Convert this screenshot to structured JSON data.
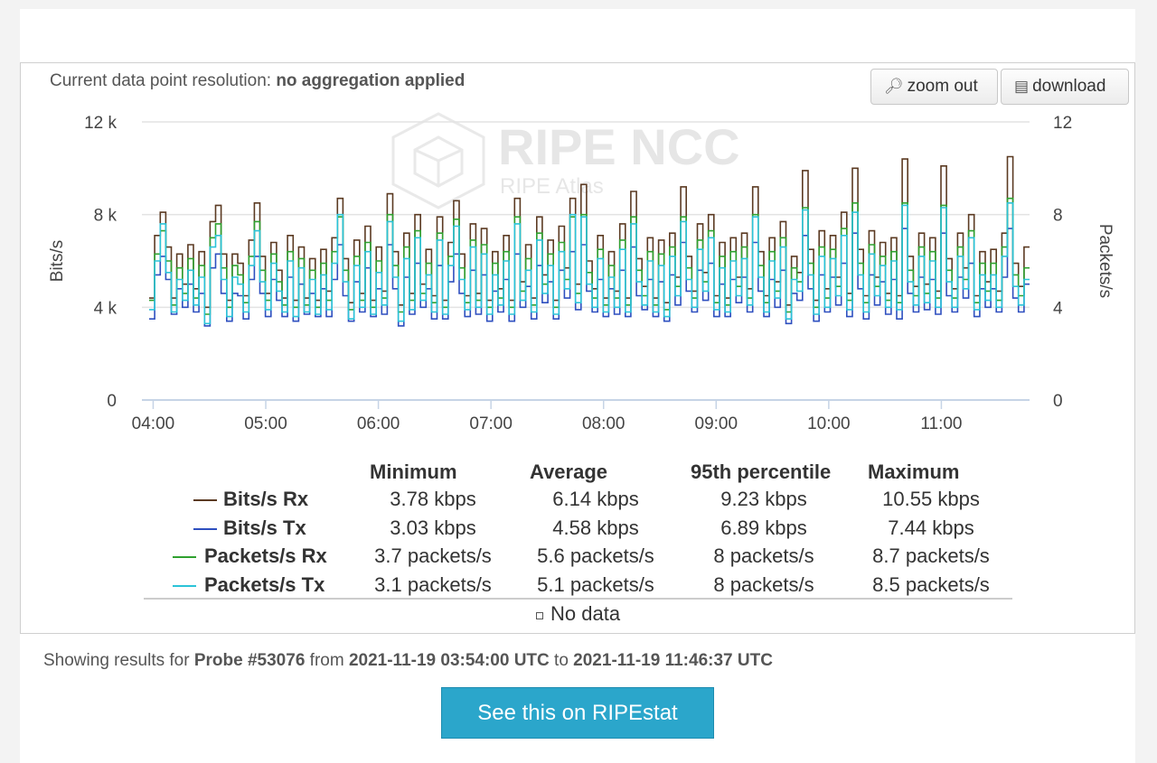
{
  "resolution": {
    "label": "Current data point resolution: ",
    "value": "no aggregation applied"
  },
  "toolbar": {
    "zoom_out_label": "zoom out",
    "download_label": "download"
  },
  "watermark": {
    "brand": "RIPE NCC",
    "product": "RIPE Atlas"
  },
  "chart_data": {
    "type": "line",
    "step": true,
    "x_ticks": [
      "04:00",
      "05:00",
      "06:00",
      "07:00",
      "08:00",
      "09:00",
      "10:00",
      "11:00"
    ],
    "x_range": [
      "03:54",
      "11:47"
    ],
    "ylabel_left": "Bits/s",
    "ylabel_right": "Packets/s",
    "y_left_ticks": [
      "0",
      "4 k",
      "8 k",
      "12 k"
    ],
    "y_right_ticks": [
      "0",
      "4",
      "8",
      "12"
    ],
    "ylim_left": [
      0,
      12000
    ],
    "ylim_right": [
      0,
      12
    ],
    "grid": true,
    "series": [
      {
        "name": "Bits/s Rx",
        "color": "#5b3a22",
        "axis": "left",
        "min": "3.78 kbps",
        "avg": "6.14 kbps",
        "p95": "9.23 kbps",
        "max": "10.55 kbps",
        "values": [
          4.4,
          7.1,
          8.1,
          6.6,
          4.4,
          6.3,
          5.0,
          6.7,
          4.8,
          6.4,
          4.0,
          7.7,
          8.4,
          6.3,
          4.3,
          6.3,
          5.9,
          4.5,
          6.9,
          8.5,
          6.2,
          4.6,
          6.8,
          5.6,
          4.4,
          7.1,
          4.3,
          6.6,
          4.4,
          6.1,
          4.3,
          6.5,
          4.7,
          7.0,
          8.7,
          6.1,
          4.2,
          6.9,
          4.6,
          7.5,
          4.3,
          6.6,
          4.7,
          8.9,
          6.4,
          4.1,
          7.2,
          4.6,
          8.0,
          5.0,
          6.5,
          4.5,
          7.9,
          4.3,
          6.8,
          8.6,
          6.3,
          4.5,
          7.6,
          4.6,
          7.4,
          4.3,
          6.4,
          4.8,
          7.1,
          4.3,
          8.7,
          5.1,
          6.7,
          4.4,
          7.9,
          5.4,
          6.9,
          4.3,
          7.5,
          5.7,
          8.7,
          5.0,
          9.3,
          6.0,
          4.8,
          7.1,
          4.4,
          6.4,
          4.7,
          7.6,
          4.4,
          9.0,
          6.1,
          4.9,
          7.0,
          4.4,
          6.9,
          4.2,
          7.2,
          5.3,
          9.2,
          6.2,
          4.7,
          7.6,
          5.5,
          8.0,
          4.5,
          6.8,
          4.4,
          7.0,
          5.3,
          7.2,
          4.8,
          9.2,
          6.4,
          4.5,
          7.0,
          5.1,
          7.7,
          4.1,
          6.2,
          5.5,
          9.9,
          6.5,
          4.3,
          7.3,
          4.8,
          7.1,
          5.3,
          8.1,
          4.6,
          10.0,
          6.5,
          4.5,
          7.3,
          5.3,
          6.8,
          4.6,
          7.0,
          4.5,
          10.4,
          6.2,
          4.9,
          7.2,
          5.0,
          7.0,
          4.7,
          10.1,
          6.1,
          4.8,
          7.2,
          5.7,
          8.0,
          4.5,
          6.4,
          5.1,
          6.5,
          4.7,
          7.2,
          10.5,
          5.9,
          4.9,
          6.6
        ]
      },
      {
        "name": "Bits/s Tx",
        "color": "#2e4fbf",
        "axis": "left",
        "min": "3.03 kbps",
        "avg": "4.58 kbps",
        "p95": "6.89 kbps",
        "max": "7.44 kbps",
        "values": [
          3.5,
          5.4,
          6.2,
          5.2,
          3.7,
          4.8,
          4.0,
          5.0,
          3.8,
          4.6,
          3.2,
          5.7,
          6.3,
          4.6,
          3.4,
          4.6,
          4.5,
          3.5,
          5.2,
          6.2,
          4.6,
          3.6,
          5.2,
          4.3,
          3.6,
          5.3,
          3.4,
          5.0,
          3.7,
          4.6,
          3.6,
          4.8,
          3.6,
          5.2,
          6.7,
          4.5,
          3.4,
          5.1,
          3.8,
          5.7,
          3.6,
          4.8,
          3.7,
          6.7,
          4.8,
          3.2,
          5.3,
          3.7,
          5.9,
          4.0,
          4.8,
          3.5,
          5.8,
          3.5,
          5.1,
          6.3,
          4.6,
          3.6,
          5.6,
          3.7,
          5.4,
          3.4,
          4.7,
          3.8,
          5.2,
          3.4,
          6.3,
          4.0,
          4.9,
          3.5,
          5.8,
          4.2,
          5.1,
          3.5,
          5.6,
          4.4,
          6.4,
          3.9,
          6.7,
          4.7,
          3.8,
          5.2,
          3.6,
          4.8,
          3.7,
          5.6,
          3.6,
          6.6,
          4.5,
          3.9,
          5.2,
          3.6,
          5.1,
          3.4,
          5.4,
          4.1,
          6.8,
          4.7,
          3.8,
          5.6,
          4.3,
          5.9,
          3.6,
          5.0,
          3.6,
          5.2,
          4.2,
          5.3,
          3.8,
          6.8,
          4.7,
          3.6,
          5.2,
          4.0,
          5.6,
          3.3,
          4.6,
          4.3,
          7.1,
          4.8,
          3.4,
          5.4,
          3.8,
          5.3,
          4.1,
          5.9,
          3.6,
          7.2,
          4.8,
          3.5,
          5.4,
          4.1,
          5.1,
          3.7,
          5.2,
          3.5,
          7.4,
          4.6,
          3.8,
          5.3,
          3.9,
          5.2,
          3.7,
          7.2,
          4.5,
          3.8,
          5.3,
          4.4,
          5.9,
          3.6,
          4.8,
          4.0,
          4.8,
          3.8,
          5.3,
          7.4,
          4.4,
          3.8,
          5.0
        ]
      },
      {
        "name": "Packets/s Rx",
        "color": "#2fa12f",
        "axis": "right",
        "min": "3.7 packets/s",
        "avg": "5.6 packets/s",
        "p95": "8 packets/s",
        "max": "8.7 packets/s",
        "values": [
          4.3,
          6.3,
          7.3,
          6.0,
          4.1,
          5.7,
          4.6,
          6.1,
          4.4,
          5.8,
          3.7,
          7.0,
          7.6,
          5.7,
          4.0,
          5.8,
          5.4,
          4.2,
          6.2,
          7.7,
          5.6,
          4.3,
          6.3,
          5.1,
          4.1,
          6.4,
          4.0,
          6.1,
          4.1,
          5.6,
          4.0,
          5.9,
          4.3,
          6.4,
          7.9,
          5.6,
          3.9,
          6.2,
          4.3,
          6.8,
          4.0,
          6.0,
          4.4,
          8.0,
          5.8,
          3.8,
          6.6,
          4.3,
          7.3,
          4.6,
          5.9,
          4.2,
          7.2,
          4.0,
          6.2,
          7.8,
          5.7,
          4.2,
          6.9,
          4.3,
          6.7,
          4.0,
          5.9,
          4.4,
          6.4,
          4.0,
          7.9,
          4.7,
          6.1,
          4.1,
          7.2,
          5.0,
          6.3,
          4.0,
          6.8,
          5.2,
          7.9,
          4.6,
          8.0,
          5.5,
          4.4,
          6.5,
          4.1,
          5.8,
          4.4,
          6.9,
          4.1,
          7.9,
          5.6,
          4.5,
          6.4,
          4.1,
          6.3,
          3.9,
          6.6,
          4.9,
          7.9,
          5.7,
          4.4,
          6.9,
          5.1,
          7.3,
          4.2,
          6.2,
          4.1,
          6.4,
          4.9,
          6.6,
          4.4,
          8.0,
          5.8,
          4.2,
          6.4,
          4.7,
          7.0,
          3.8,
          5.7,
          5.1,
          8.3,
          5.9,
          4.0,
          6.6,
          4.4,
          6.5,
          4.9,
          7.4,
          4.3,
          8.5,
          5.9,
          4.2,
          6.7,
          4.9,
          6.2,
          4.3,
          6.4,
          4.2,
          8.5,
          5.6,
          4.5,
          6.6,
          4.6,
          6.4,
          4.4,
          8.4,
          5.6,
          4.4,
          6.6,
          5.2,
          7.3,
          4.2,
          5.9,
          4.7,
          5.9,
          4.3,
          6.6,
          8.7,
          5.4,
          4.5,
          5.7
        ]
      },
      {
        "name": "Packets/s Tx",
        "color": "#2bc3d8",
        "axis": "right",
        "min": "3.1 packets/s",
        "avg": "5.1 packets/s",
        "p95": "8 packets/s",
        "max": "8.5 packets/s",
        "values": [
          3.9,
          6.0,
          7.6,
          5.5,
          3.8,
          5.2,
          4.3,
          5.6,
          4.1,
          5.3,
          3.3,
          6.6,
          7.1,
          5.2,
          3.6,
          5.3,
          5.0,
          3.8,
          5.8,
          7.3,
          5.1,
          3.9,
          5.9,
          4.7,
          3.8,
          6.0,
          3.6,
          5.7,
          3.8,
          5.2,
          3.7,
          5.4,
          3.9,
          5.9,
          8.0,
          5.1,
          3.5,
          5.8,
          4.0,
          6.4,
          3.7,
          5.5,
          4.1,
          7.7,
          5.3,
          3.4,
          6.1,
          3.9,
          7.0,
          4.3,
          5.4,
          3.8,
          6.9,
          3.7,
          5.8,
          7.5,
          5.2,
          3.9,
          6.6,
          4.0,
          6.3,
          3.7,
          5.4,
          4.1,
          6.0,
          3.7,
          7.6,
          4.3,
          5.6,
          3.8,
          6.9,
          4.6,
          5.8,
          3.7,
          6.4,
          4.8,
          8.0,
          4.2,
          7.9,
          5.0,
          4.0,
          6.1,
          3.8,
          5.3,
          4.0,
          6.5,
          3.8,
          7.6,
          5.1,
          4.1,
          6.0,
          3.8,
          5.8,
          3.6,
          6.2,
          4.5,
          7.7,
          5.2,
          4.0,
          6.5,
          4.7,
          7.0,
          3.9,
          5.7,
          3.8,
          6.0,
          4.5,
          6.1,
          4.1,
          7.9,
          5.3,
          3.8,
          6.0,
          4.4,
          6.6,
          3.5,
          5.2,
          4.7,
          8.2,
          5.4,
          3.7,
          6.2,
          4.0,
          6.1,
          4.5,
          7.1,
          3.9,
          8.1,
          5.4,
          3.8,
          6.3,
          4.5,
          5.8,
          4.0,
          6.0,
          3.9,
          8.4,
          5.1,
          4.1,
          6.2,
          4.2,
          6.0,
          4.0,
          8.3,
          5.1,
          4.0,
          6.2,
          4.8,
          7.0,
          3.9,
          5.4,
          4.3,
          5.4,
          4.0,
          6.2,
          8.5,
          4.9,
          4.1,
          5.2
        ]
      }
    ]
  },
  "stats": {
    "headers": [
      "Minimum",
      "Average",
      "95th percentile",
      "Maximum"
    ],
    "no_data_label": "No data"
  },
  "footer": {
    "prefix": "Showing results for ",
    "probe": "Probe #53076",
    "from_word": " from ",
    "from": "2021-11-19 03:54:00 UTC",
    "to_word": " to ",
    "to": "2021-11-19 11:46:37 UTC",
    "button_label": "See this on RIPEstat"
  }
}
